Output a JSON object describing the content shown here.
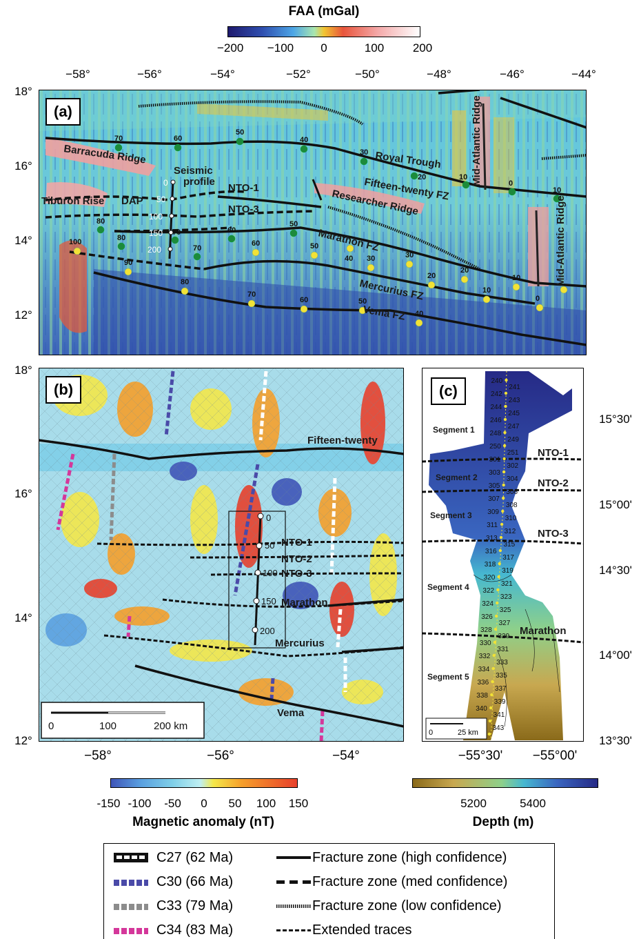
{
  "faa_bar": {
    "title": "FAA (mGal)",
    "ticks": [
      "−200",
      "−100",
      "0",
      "100",
      "200"
    ],
    "colors": [
      "#1e1a6e",
      "#2f4fb0",
      "#4da6e6",
      "#a8e6b0",
      "#f2c531",
      "#e8553c",
      "#f4a8a8",
      "#ffffff"
    ]
  },
  "panel_a": {
    "label": "(a)",
    "lon_ticks": [
      "−58°",
      "−56°",
      "−54°",
      "−52°",
      "−50°",
      "−48°",
      "−46°",
      "−44°"
    ],
    "lat_ticks": [
      "18°",
      "16°",
      "14°",
      "12°"
    ],
    "features": [
      "Barracuda Ridge",
      "Royal Trough",
      "Mid-Atlantic Ridge",
      "Fifteen-twenty FZ",
      "Researcher Ridge",
      "Tiburon Rise",
      "DAP",
      "NTO-1",
      "NTO-3",
      "Marathon FZ",
      "Mercurius FZ",
      "Vema FZ",
      "Seismic",
      "profile"
    ],
    "profile_ticks": [
      "0",
      "50",
      "100",
      "150",
      "200"
    ],
    "green_ages": [
      "70",
      "60",
      "50",
      "40",
      "30",
      "20",
      "10",
      "0",
      "10",
      "80",
      "80",
      "70",
      "70",
      "60",
      "50"
    ],
    "yellow_ages": [
      "100",
      "90",
      "80",
      "70",
      "60",
      "50",
      "40",
      "60",
      "50",
      "40",
      "30",
      "30",
      "20",
      "20",
      "10",
      "10",
      "0"
    ]
  },
  "panel_b": {
    "label": "(b)",
    "lon_ticks": [
      "−58°",
      "−56°",
      "−54°"
    ],
    "lat_ticks": [
      "18°",
      "16°",
      "14°",
      "12°"
    ],
    "features": [
      "Fifteen-twenty",
      "NTO-1",
      "NTO-2",
      "NTO-3",
      "Marathon",
      "Mercurius",
      "Vema"
    ],
    "profile_ticks": [
      "0",
      "50",
      "100",
      "150",
      "200"
    ],
    "scale_ticks": [
      "0",
      "100",
      "200 km"
    ]
  },
  "panel_c": {
    "label": "(c)",
    "lon_ticks": [
      "−55°30'",
      "−55°00'"
    ],
    "lat_ticks": [
      "15°30'",
      "15°00'",
      "14°30'",
      "14°00'",
      "13°30'"
    ],
    "segments": [
      "Segment 1",
      "Segment 2",
      "Segment 3",
      "Segment 4",
      "Segment 5"
    ],
    "boundaries": [
      "NTO-1",
      "NTO-2",
      "NTO-3",
      "Marathon"
    ],
    "stations_left": [
      "240",
      "242",
      "244",
      "246",
      "248",
      "250",
      "301",
      "303",
      "305",
      "307",
      "309",
      "311",
      "313",
      "316",
      "318",
      "320",
      "322",
      "324",
      "326",
      "328",
      "330",
      "332",
      "334",
      "336",
      "338",
      "340",
      "342",
      "344"
    ],
    "stations_right": [
      "241",
      "243",
      "245",
      "247",
      "249",
      "251",
      "302",
      "304",
      "306",
      "308",
      "310",
      "312",
      "315",
      "317",
      "319",
      "321",
      "323",
      "325",
      "327",
      "329",
      "331",
      "333",
      "335",
      "337",
      "339",
      "341",
      "343"
    ],
    "scale_ticks": [
      "0",
      "25 km"
    ]
  },
  "mag_bar": {
    "title": "Magnetic anomaly (nT)",
    "ticks": [
      "-150",
      "-100",
      "-50",
      "0",
      "50",
      "100",
      "150"
    ],
    "colors": [
      "#3f55b8",
      "#5aa0e0",
      "#7fcfe8",
      "#bfeff2",
      "#f4e84a",
      "#f5a02c",
      "#e8402c"
    ]
  },
  "depth_bar": {
    "title": "Depth (m)",
    "ticks": [
      "5200",
      "5400"
    ],
    "colors": [
      "#8a6a1a",
      "#c8a850",
      "#8ed08a",
      "#46b8d0",
      "#3a66c0",
      "#262a86"
    ]
  },
  "legend": {
    "left": [
      {
        "label": "C27 (62 Ma)",
        "color": "#111111"
      },
      {
        "label": "C30 (66 Ma)",
        "color": "#4a4aa8"
      },
      {
        "label": "C33 (79 Ma)",
        "color": "#8c8c8c"
      },
      {
        "label": "C34 (83 Ma)",
        "color": "#d4379a"
      }
    ],
    "right": [
      {
        "label": "Fracture zone (high confidence)",
        "style": "solid"
      },
      {
        "label": "Fracture zone (med confidence)",
        "style": "dashed"
      },
      {
        "label": "Fracture zone (low confidence)",
        "style": "dotted"
      },
      {
        "label": "Extended traces",
        "style": "fine-dashed"
      }
    ]
  }
}
